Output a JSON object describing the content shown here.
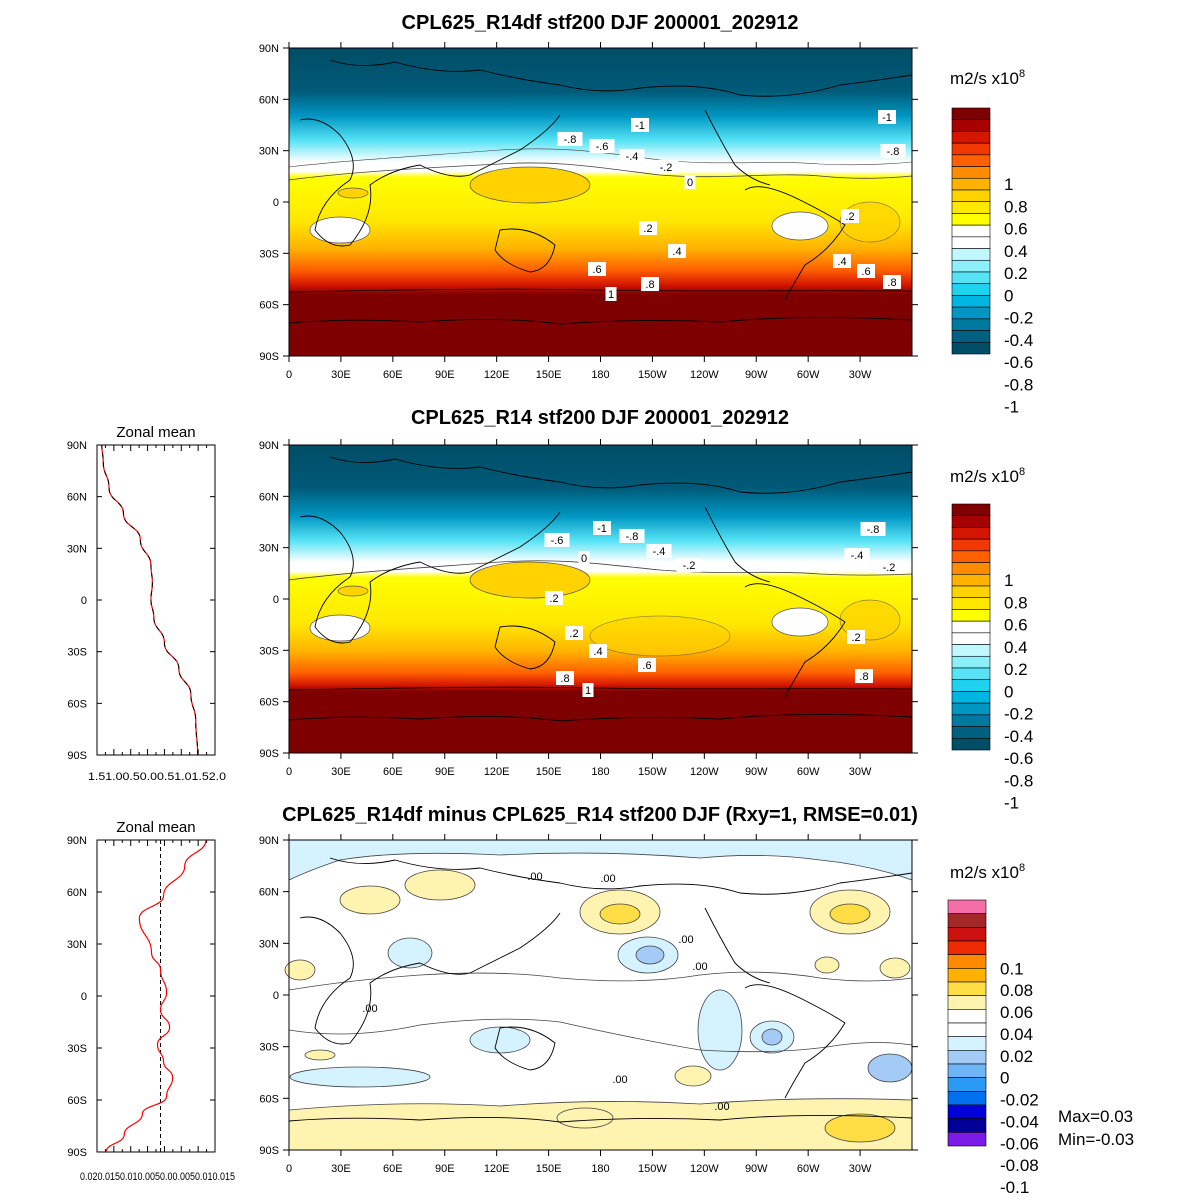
{
  "panels": [
    {
      "title": "CPL625_R14df stf200 DJF 200001_202912"
    },
    {
      "title": "CPL625_R14 stf200 DJF 200001_202912"
    },
    {
      "title": "CPL625_R14df minus CPL625_R14 stf200 DJF (Rxy=1, RMSE=0.01)"
    }
  ],
  "units_label": "m2/s x10",
  "units_exponent": "8",
  "lat_ticks": [
    "90N",
    "60N",
    "30N",
    "0",
    "30S",
    "60S",
    "90S"
  ],
  "lon_ticks": [
    "0",
    "30E",
    "60E",
    "90E",
    "120E",
    "150E",
    "180",
    "150W",
    "120W",
    "90W",
    "60W",
    "30W"
  ],
  "zonal_mean_title": "Zonal mean",
  "zonal_ticks_1": "1.51.00.50.00.51.01.52.0",
  "zonal_ticks_2": "0.020.0150.010.0050.00.0050.010.015",
  "stats": {
    "max": "Max=0.03",
    "min": "Min=-0.03"
  },
  "colorbar_main": {
    "labels": [
      "1",
      "0.8",
      "0.6",
      "0.4",
      "0.2",
      "0",
      "-0.2",
      "-0.4",
      "-0.6",
      "-0.8",
      "-1"
    ],
    "colors": [
      "#7f0000",
      "#a80000",
      "#d41500",
      "#f03800",
      "#ff6000",
      "#ff8c00",
      "#ffb300",
      "#ffd200",
      "#ffe800",
      "#ffff00",
      "#ffffff",
      "#ffffff",
      "#bff8ff",
      "#8deffa",
      "#55e3f5",
      "#1fd2ef",
      "#00b5e0",
      "#0096c2",
      "#0079a0",
      "#00607f",
      "#004d66"
    ]
  },
  "colorbar_diff": {
    "labels": [
      "0.1",
      "0.08",
      "0.06",
      "0.04",
      "0.02",
      "0",
      "-0.02",
      "-0.04",
      "-0.06",
      "-0.08",
      "-0.1"
    ],
    "colors": [
      "#f46ea8",
      "#a52828",
      "#cc1010",
      "#ee2a00",
      "#ff8a00",
      "#ffb000",
      "#ffdd44",
      "#fff3b0",
      "#ffffff",
      "#ffffff",
      "#d4f2ff",
      "#a4cbf5",
      "#6fb4f5",
      "#2a9af5",
      "#0070ee",
      "#0000d8",
      "#000098",
      "#7a1be8"
    ]
  },
  "chart_data": [
    {
      "type": "heatmap",
      "title": "CPL625_R14df stf200 DJF 200001_202912",
      "xlabel": "",
      "ylabel": "",
      "x_ticks": [
        "0",
        "30E",
        "60E",
        "90E",
        "120E",
        "150E",
        "180",
        "150W",
        "120W",
        "90W",
        "60W",
        "30W"
      ],
      "y_ticks": [
        "90N",
        "60N",
        "30N",
        "0",
        "30S",
        "60S",
        "90S"
      ],
      "levels": [
        -1,
        -0.9,
        -0.8,
        -0.7,
        -0.6,
        -0.5,
        -0.4,
        -0.3,
        -0.2,
        -0.1,
        0,
        0.1,
        0.2,
        0.3,
        0.4,
        0.5,
        0.6,
        0.7,
        0.8,
        0.9,
        1
      ],
      "contour_labels": [
        "-1",
        "-.8",
        "-.6",
        "-.4",
        "-.2",
        "0",
        ".2",
        ".4",
        ".6",
        ".8",
        "1"
      ]
    },
    {
      "type": "heatmap",
      "title": "CPL625_R14 stf200 DJF 200001_202912",
      "x_ticks": [
        "0",
        "30E",
        "60E",
        "90E",
        "120E",
        "150E",
        "180",
        "150W",
        "120W",
        "90W",
        "60W",
        "30W"
      ],
      "y_ticks": [
        "90N",
        "60N",
        "30N",
        "0",
        "30S",
        "60S",
        "90S"
      ],
      "levels": [
        -1,
        -0.9,
        -0.8,
        -0.7,
        -0.6,
        -0.5,
        -0.4,
        -0.3,
        -0.2,
        -0.1,
        0,
        0.1,
        0.2,
        0.3,
        0.4,
        0.5,
        0.6,
        0.7,
        0.8,
        0.9,
        1
      ],
      "contour_labels": [
        "-1",
        "-.8",
        "-.6",
        "-.4",
        "-.2",
        "0",
        ".2",
        ".4",
        ".6",
        ".8",
        "1"
      ]
    },
    {
      "type": "line",
      "title": "Zonal mean",
      "x": [
        0.99,
        0.95,
        0.85,
        0.6,
        0.3,
        0.08,
        0.02,
        0.05,
        0.02,
        -0.2,
        -0.55,
        -0.85,
        -0.97,
        -1.0
      ],
      "y": [
        -90,
        -70,
        -55,
        -40,
        -25,
        -10,
        0,
        10,
        20,
        35,
        50,
        65,
        80,
        90
      ],
      "series": [
        {
          "values": [
            0.99,
            0.95,
            0.85,
            0.6,
            0.3,
            0.08,
            0.02,
            0.05,
            0.02,
            -0.2,
            -0.55,
            -0.85,
            -0.97,
            -1.0
          ]
        }
      ]
    },
    {
      "type": "heatmap",
      "title": "CPL625_R14df minus CPL625_R14 stf200 DJF (Rxy=1, RMSE=0.01)",
      "x_ticks": [
        "0",
        "30E",
        "60E",
        "90E",
        "120E",
        "150E",
        "180",
        "150W",
        "120W",
        "90W",
        "60W",
        "30W"
      ],
      "y_ticks": [
        "90N",
        "60N",
        "30N",
        "0",
        "30S",
        "60S",
        "90S"
      ],
      "levels": [
        -0.1,
        -0.09,
        -0.08,
        -0.07,
        -0.06,
        -0.05,
        -0.04,
        -0.03,
        -0.02,
        -0.01,
        0,
        0.01,
        0.02,
        0.03,
        0.04,
        0.05,
        0.06,
        0.07,
        0.08,
        0.09,
        0.1
      ],
      "max": 0.03,
      "min": -0.03,
      "contour_labels": [
        ".00"
      ]
    },
    {
      "type": "line",
      "title": "Zonal mean",
      "x": [
        -0.018,
        -0.012,
        -0.006,
        0.002,
        0.004,
        0.001,
        -0.001,
        0.003,
        0.0,
        0.002,
        0.0,
        -0.003,
        -0.007,
        0.001,
        0.008,
        0.015
      ],
      "y": [
        -90,
        -80,
        -68,
        -58,
        -47,
        -38,
        -28,
        -18,
        -8,
        2,
        15,
        25,
        45,
        58,
        75,
        90
      ],
      "series": [
        {
          "values": [
            -0.018,
            -0.012,
            -0.006,
            0.002,
            0.004,
            0.001,
            -0.001,
            0.003,
            0.0,
            0.002,
            0.0,
            -0.003,
            -0.007,
            0.001,
            0.008,
            0.015
          ]
        }
      ]
    }
  ]
}
